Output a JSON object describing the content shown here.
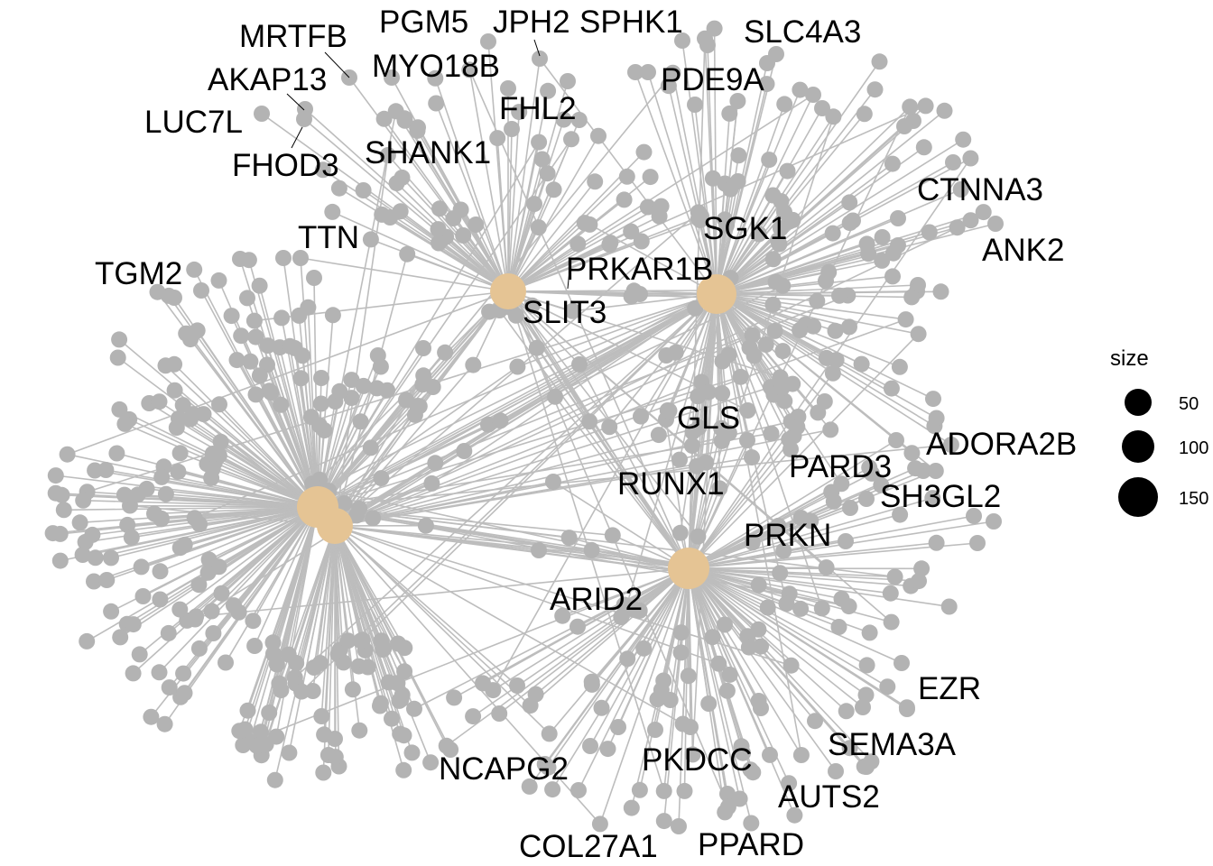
{
  "colors": {
    "edge": "#bdbdbd",
    "gene_node": "#b3b3b3",
    "category_node": "#e5c494",
    "legend_dot": "#000000",
    "text": "#000000"
  },
  "labels": [
    "MRTFB",
    "PGM5",
    "JPH2",
    "SPHK1",
    "SLC4A3",
    "MYO18B",
    "AKAP13",
    "PDE9A",
    "LUC7L",
    "FHL2",
    "FHOD3",
    "SHANK1",
    "CTNNA3",
    "TTN",
    "SGK1",
    "ANK2",
    "TGM2",
    "PRKAR1B",
    "SLIT3",
    "GLS",
    "ADORA2B",
    "PARD3",
    "RUNX1",
    "SH3GL2",
    "PRKN",
    "ARID2",
    "EZR",
    "SEMA3A",
    "NCAPG2",
    "PKDCC",
    "AUTS2",
    "COL27A1",
    "PPARD"
  ],
  "legend": {
    "title": "size",
    "items": [
      {
        "label": "50",
        "size": 50
      },
      {
        "label": "100",
        "size": 100
      },
      {
        "label": "150",
        "size": 150
      }
    ]
  }
}
